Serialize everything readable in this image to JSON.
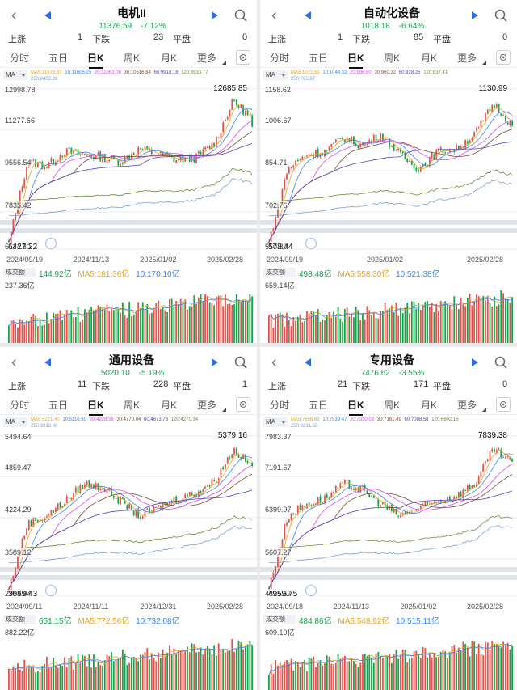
{
  "common": {
    "stats": {
      "up": "上涨",
      "down": "下跌",
      "flat": "平盘"
    },
    "tabs": [
      "分时",
      "五日",
      "日K",
      "周K",
      "月K",
      "更多"
    ],
    "active_tab": 2,
    "ma_selector": "MA",
    "vol_selector": "成交额",
    "colors": {
      "up": "#e5514b",
      "down": "#16a34a",
      "ma5": "#e8a417",
      "ma10": "#3b82f6",
      "ma20": "#d946ef",
      "ma30": "#7a4d2e",
      "ma60": "#5b3fb5",
      "ma120": "#6b8e3a",
      "ma250": "#7aa0c9",
      "accent": "#2f6be0"
    },
    "icons": {
      "back": "back-arrow-icon",
      "prev": "prev-triangle-icon",
      "next": "next-triangle-icon",
      "search": "search-icon",
      "settings": "settings-icon"
    }
  },
  "panels": [
    {
      "title": "电机II",
      "price": "11376.59",
      "change": "-7.12%",
      "up_count": "1",
      "down_count": "23",
      "flat_count": "0",
      "ma_values": {
        "ma5": "MA5:11979.33",
        "ma10": "10:11605.25",
        "ma20": "20:11062.08",
        "ma30": "30:10516.84",
        "ma60": "60:9918.18",
        "ma120": "120:8933.77",
        "ma250": "250:8402.26"
      },
      "y_ticks": [
        "12998.78",
        "11277.66",
        "9556.54",
        "7835.42",
        "6114.30"
      ],
      "high_label": "12685.85",
      "low_label": "6427.22",
      "dates": [
        "2024/09/19",
        "2024/11/13",
        "2025/01/02",
        "2025/02/28"
      ],
      "vol_values": {
        "current": "144.92亿",
        "ma5": "MA5:181.36亿",
        "ma10": "10:170.10亿"
      },
      "vol_max": "237.36亿",
      "chart_data": {
        "type": "candlestick",
        "ylim": [
          6114.3,
          12998.78
        ],
        "start": 6427.22,
        "end": 11376.59,
        "high": 12685.85,
        "low": 6427.22,
        "series_shape": [
          0.0,
          0.55,
          0.52,
          0.62,
          0.6,
          0.58,
          0.55,
          0.64,
          0.6,
          0.56,
          0.58,
          0.68,
          0.97,
          0.84
        ]
      }
    },
    {
      "title": "自动化设备",
      "price": "1018.18",
      "change": "-6.64%",
      "up_count": "1",
      "down_count": "85",
      "flat_count": "0",
      "ma_values": {
        "ma5": "MA5:1071.51",
        "ma10": "10:1044.32",
        "ma20": "20:996.60",
        "ma30": "30:960.32",
        "ma60": "60:928.25",
        "ma120": "120:837.41",
        "ma250": "250:765.87"
      },
      "y_ticks": [
        "1158.62",
        "1006.67",
        "854.71",
        "702.76",
        "550.80"
      ],
      "high_label": "1130.99",
      "low_label": "578.44",
      "dates": [
        "2024/09/19",
        "2025/01/02",
        "2025/02/28"
      ],
      "vol_values": {
        "current": "498.48亿",
        "ma5": "MA5:558.30亿",
        "ma10": "10:521.38亿"
      },
      "vol_max": "659.14亿",
      "chart_data": {
        "type": "candlestick",
        "ylim": [
          550.8,
          1158.62
        ],
        "start": 578.44,
        "end": 1018.18,
        "high": 1130.99,
        "low": 578.44,
        "series_shape": [
          0.0,
          0.5,
          0.6,
          0.62,
          0.72,
          0.66,
          0.74,
          0.6,
          0.5,
          0.62,
          0.64,
          0.74,
          0.95,
          0.8
        ]
      }
    },
    {
      "title": "通用设备",
      "price": "5020.10",
      "change": "-5.19%",
      "up_count": "11",
      "down_count": "228",
      "flat_count": "1",
      "ma_values": {
        "ma5": "MA5:5221.40",
        "ma10": "10:5116.60",
        "ma20": "20:4928.56",
        "ma30": "30:4770.04",
        "ma60": "60:4673.73",
        "ma120": "120:4270.34",
        "ma250": "250:3912.48"
      },
      "y_ticks": [
        "5494.64",
        "4859.47",
        "4224.29",
        "3589.12",
        "2953.94"
      ],
      "high_label": "5379.16",
      "low_label": "3069.43",
      "dates": [
        "2024/09/11",
        "2024/11/11",
        "2024/12/31",
        "2025/02/28"
      ],
      "vol_values": {
        "current": "651.15亿",
        "ma5": "MA5:772.56亿",
        "ma10": "10:732.08亿"
      },
      "vol_max": "882.22亿",
      "chart_data": {
        "type": "candlestick",
        "ylim": [
          2953.94,
          5494.64
        ],
        "start": 3069.43,
        "end": 5020.1,
        "high": 5379.16,
        "low": 3069.43,
        "series_shape": [
          0.0,
          0.45,
          0.5,
          0.6,
          0.72,
          0.7,
          0.6,
          0.5,
          0.56,
          0.62,
          0.66,
          0.74,
          0.96,
          0.84
        ]
      }
    },
    {
      "title": "专用设备",
      "price": "7476.62",
      "change": "-3.55%",
      "up_count": "21",
      "down_count": "171",
      "flat_count": "0",
      "ma_values": {
        "ma5": "MA5:7656.65",
        "ma10": "10:7539.47",
        "ma20": "20:7330.03",
        "ma30": "30:7161.49",
        "ma60": "60:7088.58",
        "ma120": "120:6602.15",
        "ma250": "250:6231.58"
      },
      "y_ticks": [
        "7983.37",
        "7191.67",
        "6399.97",
        "5607.27",
        "4815.57"
      ],
      "high_label": "7839.38",
      "low_label": "4959.75",
      "dates": [
        "2024/09/18",
        "2024/11/13",
        "2025/01/02",
        "2025/02/28"
      ],
      "vol_values": {
        "current": "484.86亿",
        "ma5": "MA5:548.92亿",
        "ma10": "10:515.11亿"
      },
      "vol_max": "609.10亿",
      "chart_data": {
        "type": "candlestick",
        "ylim": [
          4815.57,
          7983.37
        ],
        "start": 4959.75,
        "end": 7476.62,
        "high": 7839.38,
        "low": 4959.75,
        "series_shape": [
          0.0,
          0.5,
          0.58,
          0.62,
          0.72,
          0.68,
          0.58,
          0.5,
          0.55,
          0.6,
          0.64,
          0.72,
          0.96,
          0.86
        ]
      }
    }
  ]
}
